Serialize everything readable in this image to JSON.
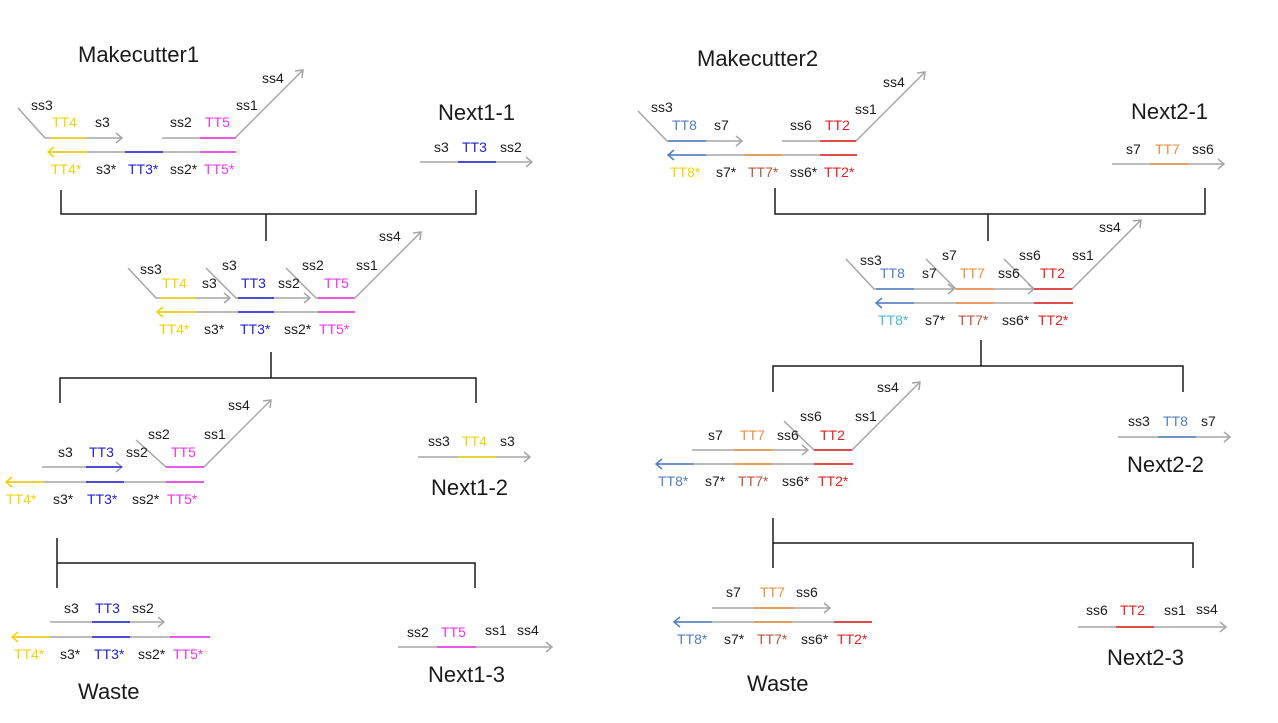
{
  "colors": {
    "gray": "#a6a6a6",
    "black": "#1a1a1a",
    "yellow": "#f2d200",
    "blue": "#2020d8",
    "magenta": "#ee33ee",
    "steelblue": "#4f7ec6",
    "orange": "#ed8d3a",
    "red": "#e61e1e",
    "cyan": "#4bb7d4",
    "brown": "#b5543c"
  },
  "titles": {
    "makecutter1": "Makecutter1",
    "makecutter2": "Makecutter2",
    "next1_1": "Next1-1",
    "next1_2": "Next1-2",
    "next1_3": "Next1-3",
    "next2_1": "Next2-1",
    "next2_2": "Next2-2",
    "next2_3": "Next2-3",
    "waste1": "Waste",
    "waste2": "Waste"
  },
  "labels": {
    "ss1": "ss1",
    "ss2": "ss2",
    "ss3": "ss3",
    "ss4": "ss4",
    "ss6": "ss6",
    "s3": "s3",
    "s7": "s7",
    "s3c": "s3*",
    "s7c": "s7*",
    "ss2c": "ss2*",
    "ss6c": "ss6*",
    "TT2": "TT2",
    "TT3": "TT3",
    "TT4": "TT4",
    "TT5": "TT5",
    "TT7": "TT7",
    "TT8": "TT8",
    "TT2c": "TT2*",
    "TT3c": "TT3*",
    "TT4c": "TT4*",
    "TT5c": "TT5*",
    "TT7c": "TT7*",
    "TT8c": "TT8*"
  }
}
